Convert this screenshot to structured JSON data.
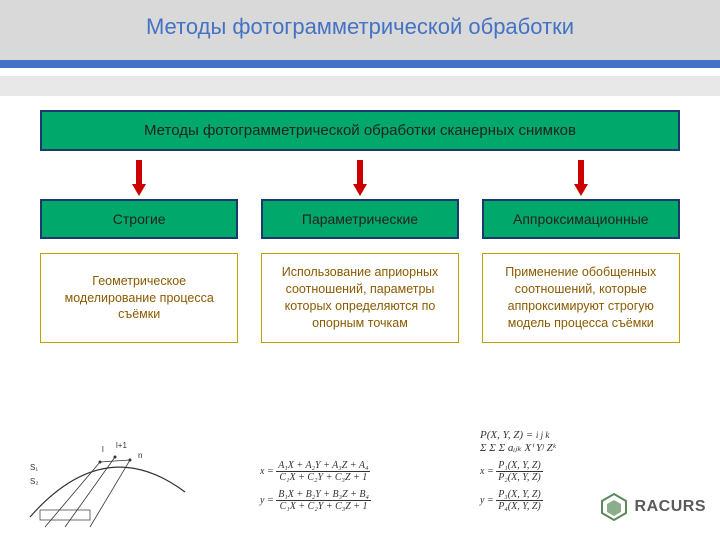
{
  "title": "Методы фотограмметрической обработки",
  "main_label": "Методы фотограмметрической обработки сканерных снимков",
  "branches": [
    {
      "category": "Строгие",
      "description": "Геометрическое моделирование процесса съёмки"
    },
    {
      "category": "Параметрические",
      "description": "Использование априорных соотношений, параметры которых определяются по опорным точкам"
    },
    {
      "category": "Аппроксимационные",
      "description": "Применение обобщенных соотношений, которые аппроксимируют строгую модель процесса съёмки"
    }
  ],
  "colors": {
    "title_color": "#4472c4",
    "box_fill": "#00a86b",
    "box_border": "#1a3a6e",
    "desc_border": "#c0a000",
    "desc_text": "#8a5a00",
    "arrow_color": "#cc0000",
    "header_band": "#d9d9d9"
  },
  "arrow": {
    "shaft_width": 6,
    "head_width": 14,
    "height": 36
  },
  "formulas": {
    "mid": [
      {
        "lhs": "x =",
        "num": "A₁X + A₂Y + A₃Z + A₄",
        "den": "C₁X + C₂Y + C₃Z + 1"
      },
      {
        "lhs": "y =",
        "num": "B₁X + B₂Y + B₃Z + B₄",
        "den": "C₁X + C₂Y + C₃Z + 1"
      }
    ],
    "right_sum": {
      "lhs": "P(X, Y, Z) =",
      "body": "Σ Σ Σ aᵢⱼₖ Xⁱ Yʲ Zᵏ",
      "limits": "i  j  k"
    },
    "right_rat": [
      {
        "lhs": "x =",
        "num": "P₁(X, Y, Z)",
        "den": "P₂(X, Y, Z)"
      },
      {
        "lhs": "y =",
        "num": "P₃(X, Y, Z)",
        "den": "P₄(X, Y, Z)"
      }
    ]
  },
  "logo_text": "RACURS",
  "sketch_labels": {
    "s1": "S₁",
    "s2": "S₂",
    "n": "n",
    "l": "l",
    "m": "l+1"
  }
}
